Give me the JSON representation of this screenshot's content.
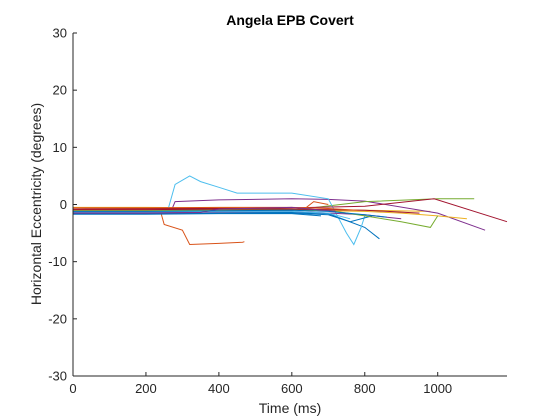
{
  "chart_data": {
    "type": "line",
    "title": "Angela EPB Covert",
    "xlabel": "Time (ms)",
    "ylabel": "Horizontal Eccentricity (degrees)",
    "xlim": [
      0,
      1190
    ],
    "ylim": [
      -30,
      30
    ],
    "xticks": [
      0,
      200,
      400,
      600,
      800,
      1000
    ],
    "yticks": [
      -30,
      -20,
      -10,
      0,
      10,
      20,
      30
    ],
    "grid": false,
    "series": [
      {
        "color": "#0072BD",
        "x": [
          0,
          200,
          400,
          600,
          700,
          800,
          840
        ],
        "y": [
          -1.5,
          -1.4,
          -1.3,
          -1.4,
          -1.6,
          -4.0,
          -6.0
        ]
      },
      {
        "color": "#D95319",
        "x": [
          0,
          100,
          200,
          240,
          250,
          300,
          320,
          400,
          465,
          470
        ],
        "y": [
          -1.0,
          -1.0,
          -1.1,
          -1.2,
          -3.5,
          -4.5,
          -7.0,
          -6.8,
          -6.6,
          -6.5
        ]
      },
      {
        "color": "#EDB120",
        "x": [
          0,
          200,
          400,
          600,
          800,
          980
        ],
        "y": [
          -0.5,
          -0.5,
          -0.6,
          -0.8,
          -1.0,
          -1.2
        ]
      },
      {
        "color": "#7E2F8E",
        "x": [
          0,
          270,
          280,
          400,
          600,
          700,
          800,
          1000,
          1130
        ],
        "y": [
          -1.2,
          -1.0,
          0.5,
          0.8,
          1.0,
          0.9,
          0.6,
          -1.5,
          -4.5
        ]
      },
      {
        "color": "#77AC30",
        "x": [
          0,
          200,
          400,
          600,
          800,
          1000,
          1100
        ],
        "y": [
          -1.3,
          -1.2,
          -1.1,
          -1.0,
          0.5,
          1.0,
          1.0
        ]
      },
      {
        "color": "#4DBEEE",
        "x": [
          0,
          260,
          280,
          320,
          350,
          400,
          450,
          600,
          700,
          750,
          770,
          790,
          800
        ],
        "y": [
          -1.0,
          -1.0,
          3.5,
          5.0,
          4.0,
          3.0,
          2.0,
          2.0,
          1.0,
          -5.0,
          -7.0,
          -4.0,
          -2.0
        ]
      },
      {
        "color": "#A2142F",
        "x": [
          0,
          200,
          400,
          600,
          800,
          990,
          1190
        ],
        "y": [
          -0.8,
          -0.7,
          -0.7,
          -0.6,
          -0.3,
          1.0,
          -3.0
        ]
      },
      {
        "color": "#0072BD",
        "x": [
          0,
          200,
          400,
          600,
          700,
          760,
          820
        ],
        "y": [
          -1.6,
          -1.6,
          -1.5,
          -1.5,
          -1.8,
          -3.0,
          -2.0
        ]
      },
      {
        "color": "#D95319",
        "x": [
          0,
          200,
          400,
          600,
          640,
          660,
          700
        ],
        "y": [
          -0.9,
          -0.9,
          -1.0,
          -1.0,
          -0.5,
          0.5,
          0.0
        ]
      },
      {
        "color": "#EDB120",
        "x": [
          0,
          200,
          400,
          600,
          800,
          900,
          1000,
          1080
        ],
        "y": [
          -1.1,
          -1.1,
          -1.0,
          -1.0,
          -1.2,
          -1.5,
          -2.0,
          -2.5
        ]
      },
      {
        "color": "#7E2F8E",
        "x": [
          0,
          200,
          400,
          600,
          800,
          900
        ],
        "y": [
          -1.4,
          -1.4,
          -1.3,
          -1.2,
          -1.8,
          -2.5
        ]
      },
      {
        "color": "#77AC30",
        "x": [
          0,
          200,
          400,
          600,
          700,
          800,
          900,
          980,
          1000
        ],
        "y": [
          -1.0,
          -1.0,
          -0.9,
          -0.9,
          -1.0,
          -2.0,
          -3.0,
          -4.0,
          -2.0
        ]
      },
      {
        "color": "#4DBEEE",
        "x": [
          0,
          200,
          400,
          600,
          700,
          760
        ],
        "y": [
          -1.3,
          -1.3,
          -1.2,
          -1.2,
          -1.5,
          -2.5
        ]
      },
      {
        "color": "#A2142F",
        "x": [
          0,
          200,
          400,
          600,
          800,
          950
        ],
        "y": [
          -0.9,
          -0.9,
          -0.8,
          -0.8,
          -1.0,
          -1.5
        ]
      },
      {
        "color": "#0072BD",
        "x": [
          0,
          200,
          400,
          600,
          680
        ],
        "y": [
          -1.7,
          -1.7,
          -1.6,
          -1.6,
          -2.0
        ]
      },
      {
        "color": "#D95319",
        "x": [
          0,
          200,
          400,
          600,
          700,
          780
        ],
        "y": [
          -0.6,
          -0.6,
          -0.5,
          -0.5,
          -0.7,
          -1.0
        ]
      },
      {
        "color": "#7E2F8E",
        "x": [
          0,
          200,
          350,
          400,
          600,
          720
        ],
        "y": [
          -1.5,
          -1.5,
          -1.4,
          -0.8,
          -0.5,
          -1.2
        ]
      },
      {
        "color": "#0072BD",
        "x": [
          0,
          200,
          400,
          600,
          700,
          800,
          860
        ],
        "y": [
          -1.2,
          -1.2,
          -1.1,
          -1.0,
          -1.2,
          -1.8,
          -2.2
        ]
      }
    ]
  }
}
